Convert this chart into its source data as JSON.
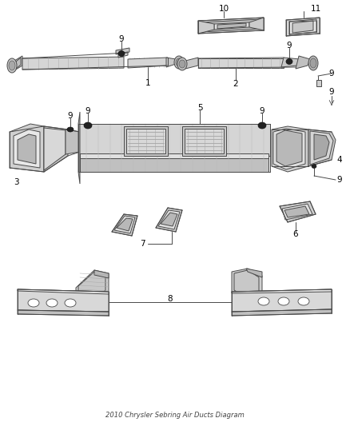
{
  "title": "2010 Chrysler Sebring Air Ducts Diagram",
  "background_color": "#ffffff",
  "lc": "#4a4a4a",
  "lc_dark": "#222222",
  "fc_light": "#e8e8e8",
  "fc_mid": "#d0d0d0",
  "fc_dark": "#b0b0b0",
  "figsize": [
    4.38,
    5.33
  ],
  "dpi": 100
}
